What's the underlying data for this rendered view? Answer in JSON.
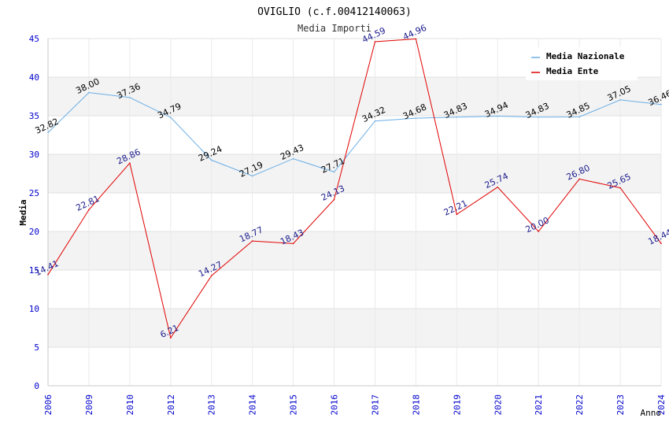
{
  "chart_data": {
    "type": "line",
    "title": "OVIGLIO (c.f.00412140063)",
    "subtitle": "Media Importi",
    "xlabel": "Anno",
    "ylabel": "Media",
    "ylim": [
      0,
      45
    ],
    "yticks": [
      0,
      5,
      10,
      15,
      20,
      25,
      30,
      35,
      40,
      45
    ],
    "grid": true,
    "legend_position": "top-right",
    "categories": [
      "2006",
      "2009",
      "2010",
      "2012",
      "2013",
      "2014",
      "2015",
      "2016",
      "2017",
      "2018",
      "2019",
      "2020",
      "2021",
      "2022",
      "2023",
      "2024"
    ],
    "series": [
      {
        "name": "Media Nazionale",
        "color": "#6aaee6",
        "label_color": "#000000",
        "values": [
          32.82,
          38.0,
          37.36,
          34.79,
          29.24,
          27.19,
          29.43,
          27.71,
          34.32,
          34.68,
          34.83,
          34.94,
          34.83,
          34.85,
          37.05,
          36.46
        ],
        "labels": [
          "32.82",
          "38.00",
          "37.36",
          "34.79",
          "29.24",
          "27.19",
          "29.43",
          "27.71",
          "34.32",
          "34.68",
          "34.83",
          "34.94",
          "34.83",
          "34.85",
          "37.05",
          "36.46"
        ]
      },
      {
        "name": "Media Ente",
        "color": "#e00000",
        "label_color": "#1a1a8c",
        "values": [
          14.41,
          22.81,
          28.86,
          6.21,
          14.27,
          18.77,
          18.43,
          24.13,
          44.59,
          44.96,
          22.21,
          25.74,
          20.0,
          26.8,
          25.65,
          18.44
        ],
        "labels": [
          "14.41",
          "22.81",
          "28.86",
          "6.21",
          "14.27",
          "18.77",
          "18.43",
          "24.13",
          "44.59",
          "44.96",
          "22.21",
          "25.74",
          "20.00",
          "26.80",
          "25.65",
          "18.44"
        ]
      }
    ]
  }
}
